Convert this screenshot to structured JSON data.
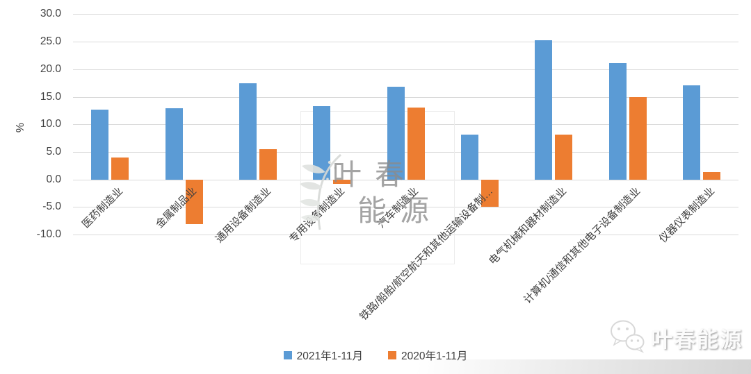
{
  "chart_data": {
    "type": "bar",
    "title": "",
    "xlabel": "",
    "ylabel": "%",
    "ylim": [
      -10,
      30
    ],
    "ytick_step": 5,
    "grid": true,
    "legend_position": "bottom",
    "categories": [
      "医药制造业",
      "金属制品业",
      "通用设备制造业",
      "专用设备制造业",
      "汽车制造业",
      "铁路/船舶/航空航天和其他运输设备制…",
      "电气机械和器材制造业",
      "计算机/通信和其他电子设备制造业",
      "仪器仪表制造业"
    ],
    "series": [
      {
        "name": "2021年1-11月",
        "color": "#5B9BD5",
        "values": [
          12.7,
          12.9,
          17.5,
          13.3,
          16.8,
          8.1,
          25.3,
          21.1,
          17.1
        ]
      },
      {
        "name": "2020年1-11月",
        "color": "#ED7D31",
        "values": [
          4.0,
          -8.1,
          5.5,
          -0.8,
          13.0,
          -5.0,
          8.1,
          15.0,
          1.3
        ]
      }
    ]
  },
  "watermark": {
    "center_line1": "叶春",
    "center_line2": "能源",
    "footer_text": "叶春能源"
  },
  "style": {
    "gridline_color": "#d9d9d9",
    "text_color": "#3f3f3f",
    "watermark_gray": "#8a8a8a",
    "series1_color": "#5B9BD5",
    "series2_color": "#ED7D31"
  }
}
